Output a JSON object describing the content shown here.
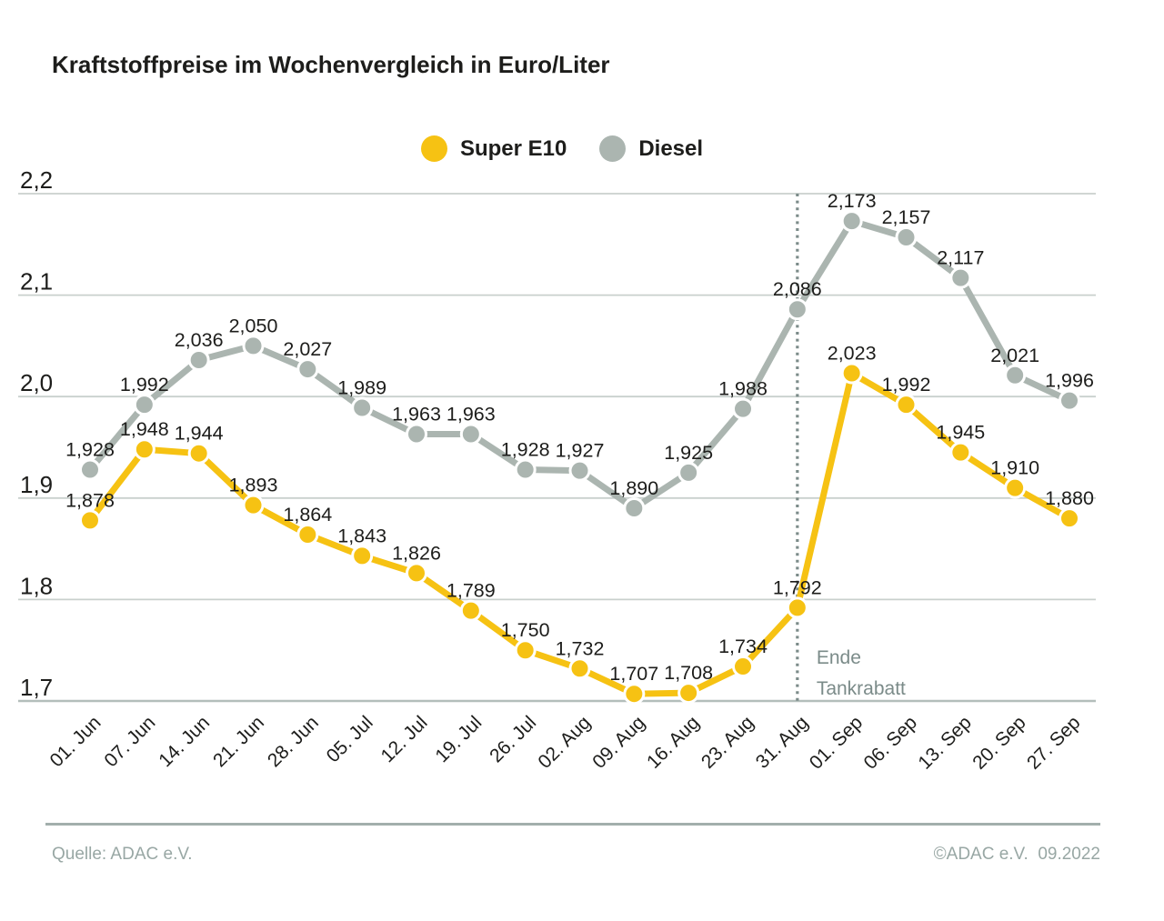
{
  "title": "Kraftstoffpreise im Wochenvergleich in Euro/Liter",
  "footer": {
    "source_left": "Quelle: ADAC e.V.",
    "source_right": "©ADAC e.V.  09.2022"
  },
  "colors": {
    "super_e10": "#f6c213",
    "diesel": "#abb5b0",
    "grid": "#c9d0cd",
    "axis_bottom": "#b4bebb",
    "text": "#1d1d1b",
    "annotation": "#7b8b89",
    "marker_ring": "#ffffff"
  },
  "chart_data": {
    "type": "line",
    "title": "Kraftstoffpreise im Wochenvergleich in Euro/Liter",
    "categories": [
      "01. Jun",
      "07. Jun",
      "14. Jun",
      "21. Jun",
      "28. Jun",
      "05. Jul",
      "12. Jul",
      "19. Jul",
      "26. Jul",
      "02. Aug",
      "09. Aug",
      "16. Aug",
      "23. Aug",
      "31. Aug",
      "01. Sep",
      "06. Sep",
      "13. Sep",
      "20. Sep",
      "27. Sep"
    ],
    "series": [
      {
        "name": "Diesel",
        "color": "#abb5b0",
        "values": [
          1.928,
          1.992,
          2.036,
          2.05,
          2.027,
          1.989,
          1.963,
          1.963,
          1.928,
          1.927,
          1.89,
          1.925,
          1.988,
          2.086,
          2.173,
          2.157,
          2.117,
          2.021,
          1.996
        ]
      },
      {
        "name": "Super E10",
        "color": "#f6c213",
        "values": [
          1.878,
          1.948,
          1.944,
          1.893,
          1.864,
          1.843,
          1.826,
          1.789,
          1.75,
          1.732,
          1.707,
          1.708,
          1.734,
          1.792,
          2.023,
          1.992,
          1.945,
          1.91,
          1.88
        ]
      }
    ],
    "legend_order": [
      "Super E10",
      "Diesel"
    ],
    "ylim": [
      1.7,
      2.2
    ],
    "yticks": {
      "values": [
        2.2,
        2.1,
        2.0,
        1.9,
        1.8,
        1.7
      ],
      "labels": [
        "2,2",
        "2,1",
        "2,0",
        "1,9",
        "1,8",
        "1,7"
      ]
    },
    "unit": "Euro/Liter",
    "value_decimal_separator": ",",
    "value_decimals": 3,
    "grid": "horizontal",
    "legend_position": "top-center",
    "annotation": {
      "at_category": "31. Aug",
      "style": "dotted-vertical-line",
      "lines": [
        "Ende",
        "Tankrabatt"
      ]
    }
  }
}
